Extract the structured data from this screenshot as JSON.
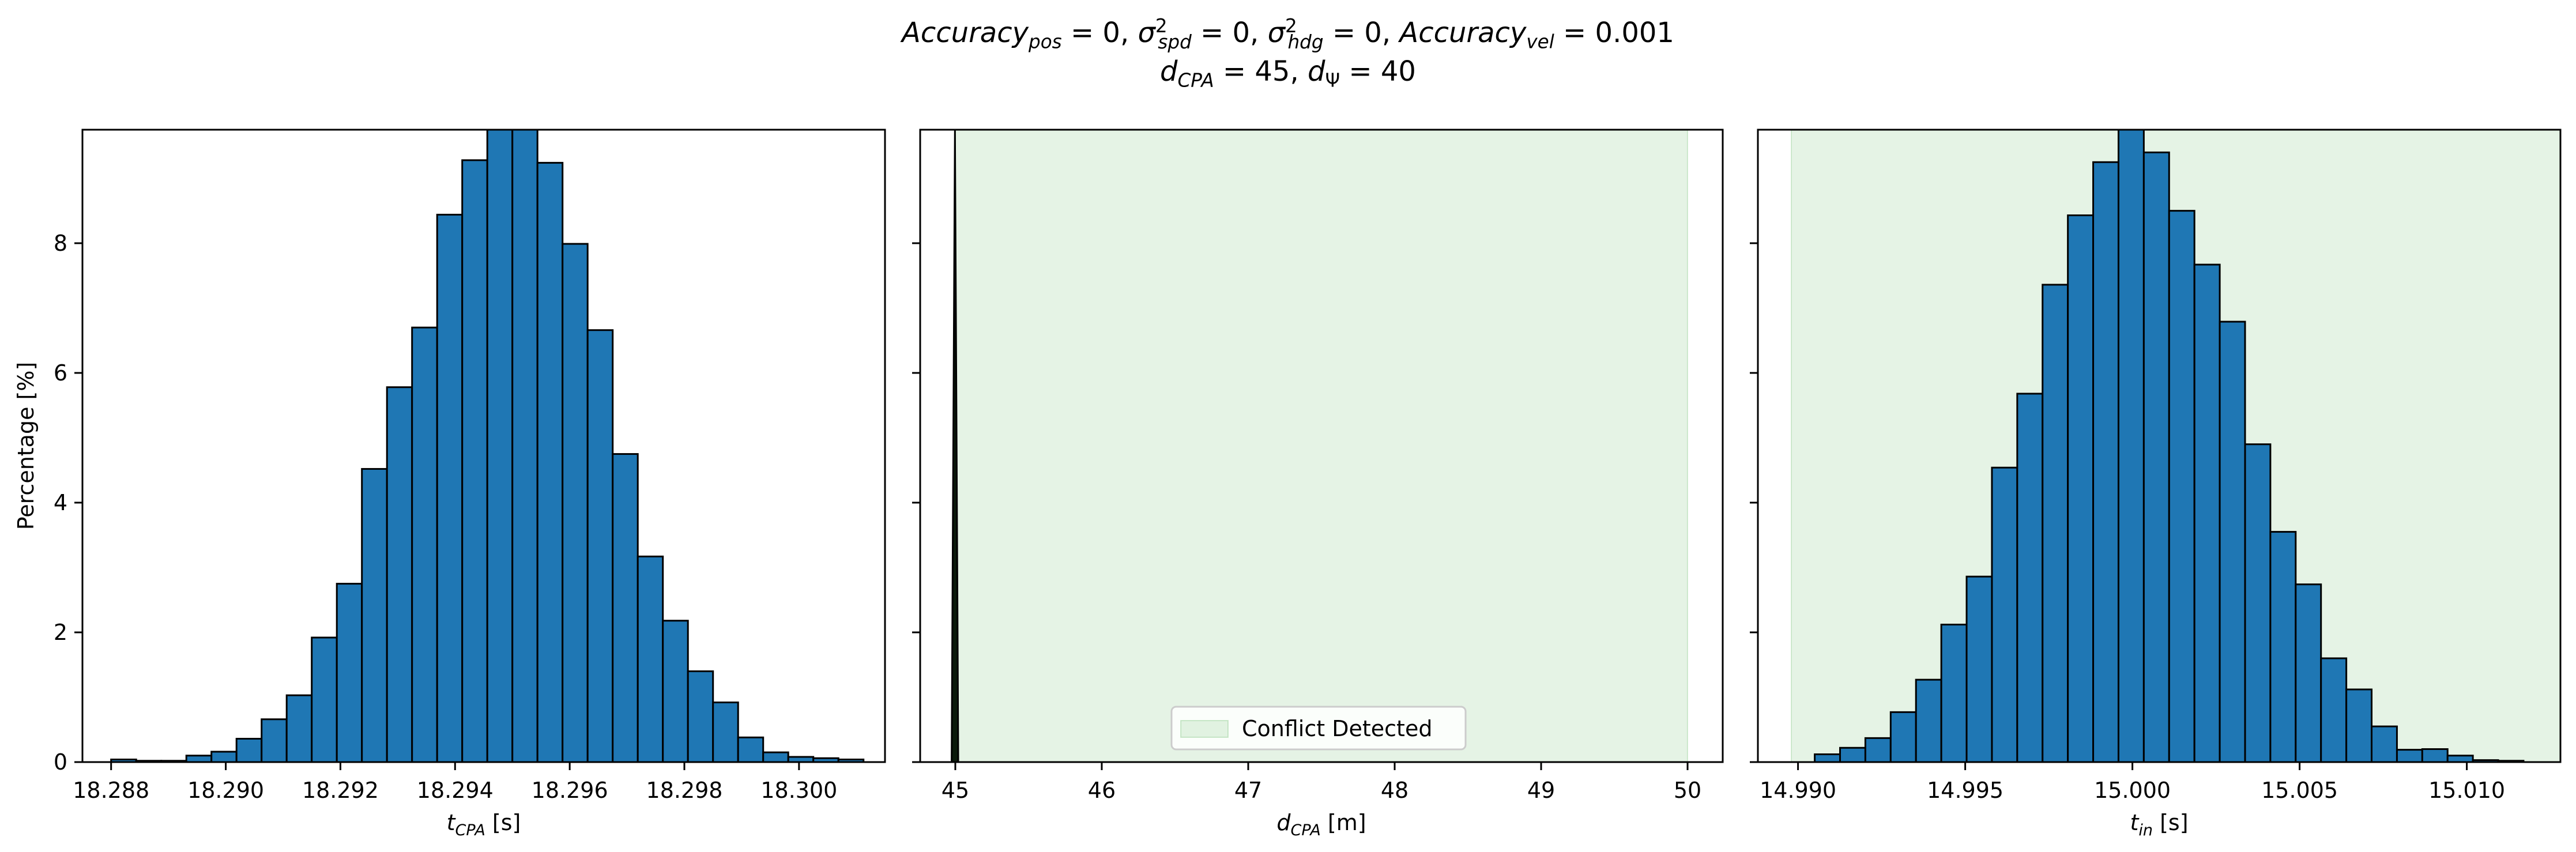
{
  "figure": {
    "title_line_1": {
      "acc_pos": "Accuracy",
      "acc_pos_sub": "pos",
      "acc_pos_val": " = 0, ",
      "sigma_spd_sub": "spd",
      "sigma_spd_val": " = 0, ",
      "sigma_hdg_sub": "hdg",
      "sigma_hdg_val": " = 0, ",
      "acc_vel": "Accuracy",
      "acc_vel_sub": "vel",
      "acc_vel_val": " = 0.001"
    },
    "title_line_2": {
      "d_cpa": "d",
      "d_cpa_sub": "CPA",
      "d_cpa_val": " = 45, ",
      "d_psi": "d",
      "d_psi_sub": "Ψ",
      "d_psi_val": " = 40"
    }
  },
  "chart_data": [
    {
      "type": "bar",
      "ylabel": "Percentage [%]",
      "xlabel": "t_CPA [s]",
      "xlabel_main": "t",
      "xlabel_sub": "CPA",
      "xlabel_unit": " [s]",
      "xlim": [
        18.2875,
        18.3015
      ],
      "ylim": [
        0,
        9.75
      ],
      "yticks": [
        0,
        2,
        4,
        6,
        8
      ],
      "xticks": [
        18.288,
        18.29,
        18.292,
        18.294,
        18.296,
        18.298,
        18.3
      ],
      "xtick_labels": [
        "18.288",
        "18.290",
        "18.292",
        "18.294",
        "18.296",
        "18.298",
        "18.300"
      ],
      "bin_start": 18.288,
      "bin_width": 0.0004375,
      "values": [
        0.04,
        0.02,
        0.02,
        0.1,
        0.16,
        0.36,
        0.66,
        1.03,
        1.92,
        2.75,
        4.52,
        5.78,
        6.7,
        8.44,
        9.28,
        9.9,
        9.85,
        9.24,
        7.99,
        6.66,
        4.75,
        3.17,
        2.18,
        1.4,
        0.92,
        0.38,
        0.15,
        0.08,
        0.06,
        0.04
      ],
      "bar_color": "#1f77b4",
      "edge_color": "#000000"
    },
    {
      "type": "bar",
      "ylabel": "",
      "xlabel": "d_CPA [m]",
      "xlabel_main": "d",
      "xlabel_sub": "CPA",
      "xlabel_unit": " [m]",
      "xlim": [
        44.76,
        50.24
      ],
      "ylim": [
        0,
        9.75
      ],
      "yticks": [
        0,
        2,
        4,
        6,
        8
      ],
      "xticks": [
        45,
        46,
        47,
        48,
        49,
        50
      ],
      "xtick_labels": [
        "45",
        "46",
        "47",
        "48",
        "49",
        "50"
      ],
      "conflict_region": [
        45.0,
        50.0
      ],
      "conflict_color": "#2ca02c",
      "spike": {
        "x_min": 44.975,
        "x_max": 45.02,
        "height": 9.75
      },
      "legend": {
        "location": "lower center",
        "entries": [
          "Conflict Detected"
        ]
      }
    },
    {
      "type": "bar",
      "ylabel": "",
      "xlabel": "t_in [s]",
      "xlabel_main": "t",
      "xlabel_sub": "in",
      "xlabel_unit": " [s]",
      "xlim": [
        14.9888,
        15.0128
      ],
      "ylim": [
        0,
        9.75
      ],
      "yticks": [
        0,
        2,
        4,
        6,
        8
      ],
      "xticks": [
        14.99,
        14.995,
        15.0,
        15.005,
        15.01
      ],
      "xtick_labels": [
        "14.990",
        "14.995",
        "15.000",
        "15.005",
        "15.010"
      ],
      "conflict_region": [
        14.9898,
        15.0128
      ],
      "conflict_color": "#2ca02c",
      "bin_start": 14.9905,
      "bin_width": 0.000757,
      "values": [
        0.12,
        0.22,
        0.37,
        0.77,
        1.27,
        2.12,
        2.86,
        4.54,
        5.68,
        7.36,
        8.43,
        9.25,
        9.8,
        9.4,
        8.5,
        7.67,
        6.79,
        4.9,
        3.55,
        2.74,
        1.6,
        1.12,
        0.55,
        0.19,
        0.2,
        0.1,
        0.03,
        0.02
      ],
      "bar_color": "#1f77b4",
      "edge_color": "#000000"
    }
  ]
}
